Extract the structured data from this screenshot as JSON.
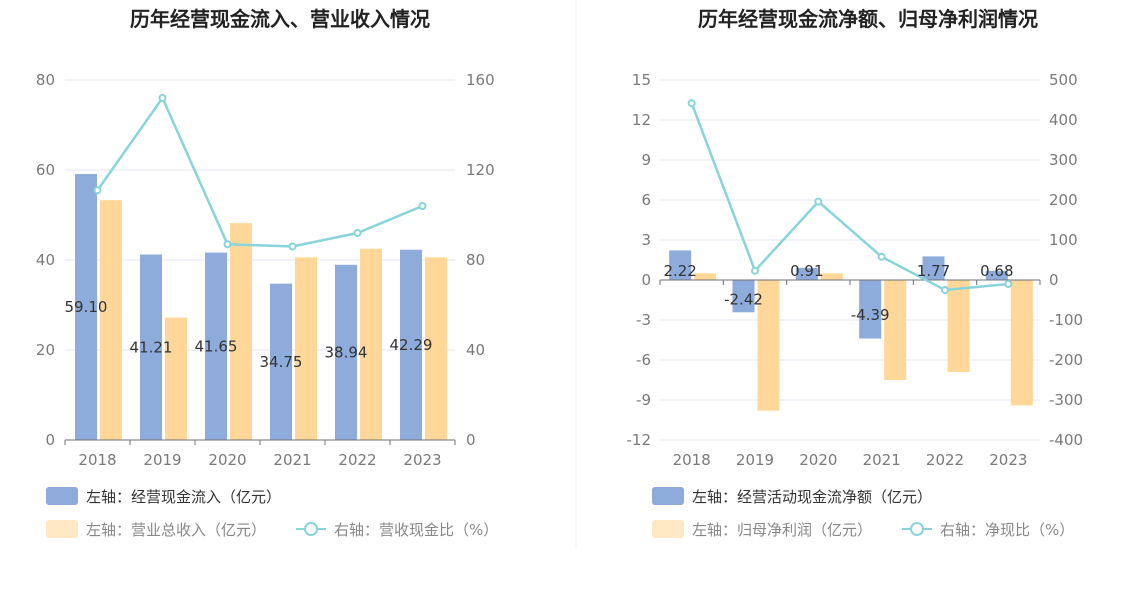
{
  "chart_data": [
    {
      "type": "bar",
      "title": "历年经营现金流入、营业收入情况",
      "categories": [
        "2018",
        "2019",
        "2020",
        "2021",
        "2022",
        "2023"
      ],
      "left_axis": {
        "ylim": [
          0,
          80
        ],
        "ticks": [
          "0",
          "20",
          "40",
          "60",
          "80"
        ]
      },
      "right_axis": {
        "ylim": [
          0,
          160
        ],
        "ticks": [
          "0",
          "40",
          "80",
          "120",
          "160"
        ]
      },
      "series": [
        {
          "name": "左轴：经营现金流入（亿元）",
          "type": "bar",
          "axis": "left",
          "color": "#8eacdb",
          "values": [
            59.1,
            41.21,
            41.65,
            34.75,
            38.94,
            42.29
          ],
          "labels": [
            "59.10",
            "41.21",
            "41.65",
            "34.75",
            "38.94",
            "42.29"
          ]
        },
        {
          "name": "左轴：营业总收入（亿元）",
          "type": "bar",
          "axis": "left",
          "color": "#ffd899",
          "values": [
            53.3,
            27.2,
            48.2,
            40.6,
            42.5,
            40.6
          ]
        },
        {
          "name": "右轴：营收现金比（%）",
          "type": "line",
          "axis": "right",
          "color": "#88d4da",
          "values": [
            111,
            152,
            87,
            86,
            92,
            104
          ]
        }
      ],
      "grid": true
    },
    {
      "type": "bar",
      "title": "历年经营现金流净额、归母净利润情况",
      "categories": [
        "2018",
        "2019",
        "2020",
        "2021",
        "2022",
        "2023"
      ],
      "left_axis": {
        "ylim": [
          -12,
          15
        ],
        "ticks": [
          "-12",
          "-9",
          "-6",
          "-3",
          "0",
          "3",
          "6",
          "9",
          "12",
          "15"
        ]
      },
      "right_axis": {
        "ylim": [
          -400,
          500
        ],
        "ticks": [
          "-400",
          "-300",
          "-200",
          "-100",
          "0",
          "100",
          "200",
          "300",
          "400",
          "500"
        ]
      },
      "series": [
        {
          "name": "左轴：经营活动现金流净额（亿元）",
          "type": "bar",
          "axis": "left",
          "color": "#8eacdb",
          "values": [
            2.22,
            -2.42,
            0.91,
            -4.39,
            1.77,
            0.68
          ],
          "labels": [
            "2.22",
            "-2.42",
            "0.91",
            "-4.39",
            "1.77",
            "0.68"
          ]
        },
        {
          "name": "左轴：归母净利润（亿元）",
          "type": "bar",
          "axis": "left",
          "color": "#ffd899",
          "values": [
            0.5,
            -9.8,
            0.5,
            -7.5,
            -6.9,
            -9.4
          ]
        },
        {
          "name": "右轴：净现比（%）",
          "type": "line",
          "axis": "right",
          "color": "#88d4da",
          "values": [
            442,
            23,
            196,
            58,
            -25,
            -10
          ]
        }
      ],
      "grid": true
    }
  ]
}
